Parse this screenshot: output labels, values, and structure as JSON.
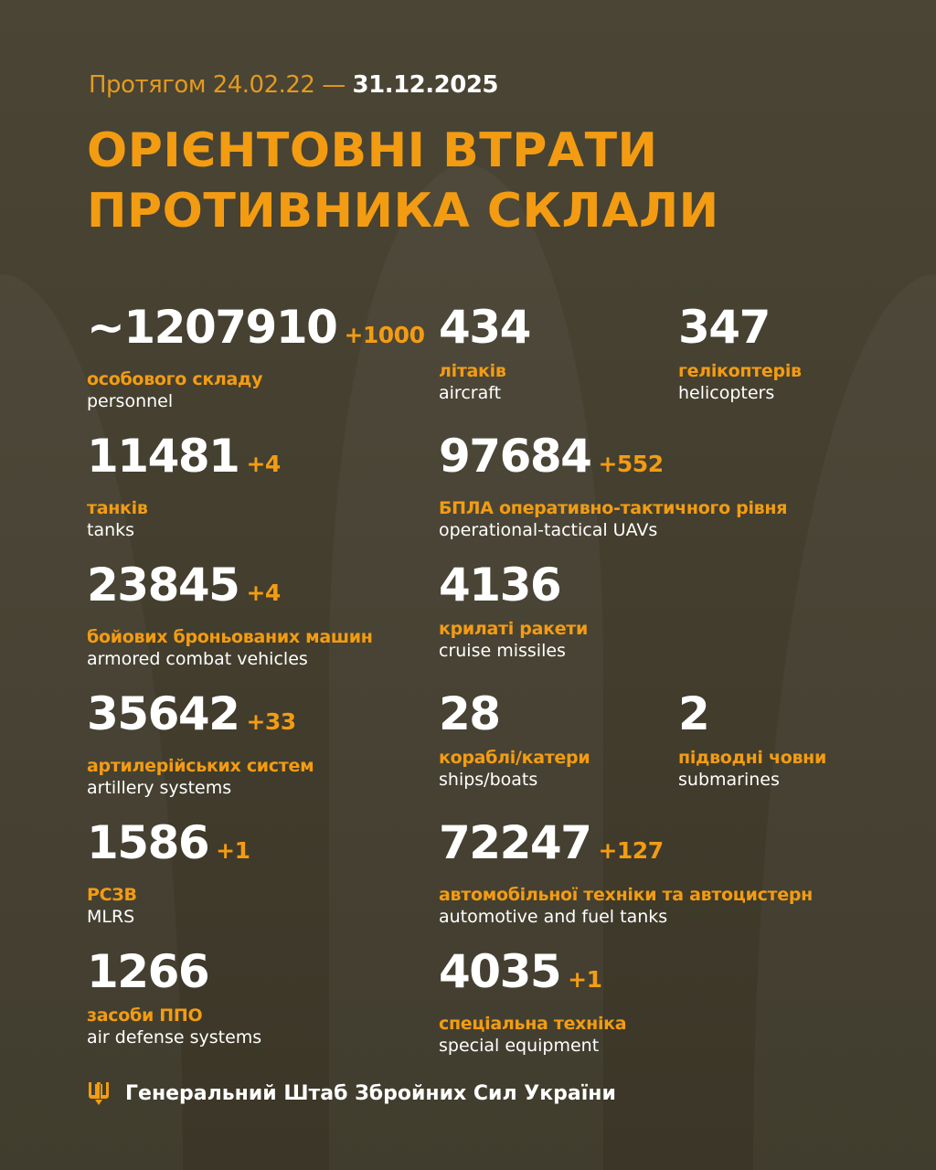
{
  "header": {
    "period_prefix": "Протягом 24.02.22 —",
    "period_end": "31.12.2025",
    "title_line1": "ОРІЄНТОВНІ ВТРАТИ",
    "title_line2": "ПРОТИВНИКА СКЛАЛИ"
  },
  "colors": {
    "accent": "#f39c12",
    "background": "#47422f",
    "text": "#ffffff"
  },
  "stats": [
    {
      "value": "~1207910",
      "delta": "+1000",
      "ua": "особового складу",
      "en": "personnel"
    },
    {
      "value": "434",
      "delta": "",
      "ua": "літаків",
      "en": "aircraft"
    },
    {
      "value": "347",
      "delta": "",
      "ua": "гелікоптерів",
      "en": "helicopters"
    },
    {
      "value": "11481",
      "delta": "+4",
      "ua": "танків",
      "en": "tanks"
    },
    {
      "value": "97684",
      "delta": "+552",
      "ua": "БПЛА оперативно-тактичного рівня",
      "en": "operational-tactical UAVs"
    },
    {
      "value": "23845",
      "delta": "+4",
      "ua": "бойових броньованих машин",
      "en": "armored combat vehicles"
    },
    {
      "value": "4136",
      "delta": "",
      "ua": "крилаті ракети",
      "en": "cruise missiles"
    },
    {
      "value": "35642",
      "delta": "+33",
      "ua": "артилерійських систем",
      "en": "artillery systems"
    },
    {
      "value": "28",
      "delta": "",
      "ua": "кораблі/катери",
      "en": "ships/boats"
    },
    {
      "value": "2",
      "delta": "",
      "ua": "підводні човни",
      "en": "submarines"
    },
    {
      "value": "1586",
      "delta": "+1",
      "ua": "РСЗВ",
      "en": "MLRS"
    },
    {
      "value": "72247",
      "delta": "+127",
      "ua": "автомобільної техніки та автоцистерн",
      "en": "automotive and fuel tanks"
    },
    {
      "value": "1266",
      "delta": "",
      "ua": "засоби ППО",
      "en": "air defense systems"
    },
    {
      "value": "4035",
      "delta": "+1",
      "ua": "спеціальна техніка",
      "en": "special equipment"
    }
  ],
  "footer": {
    "icon": "tryzub-icon",
    "text": "Генеральний Штаб Збройних Сил України"
  }
}
